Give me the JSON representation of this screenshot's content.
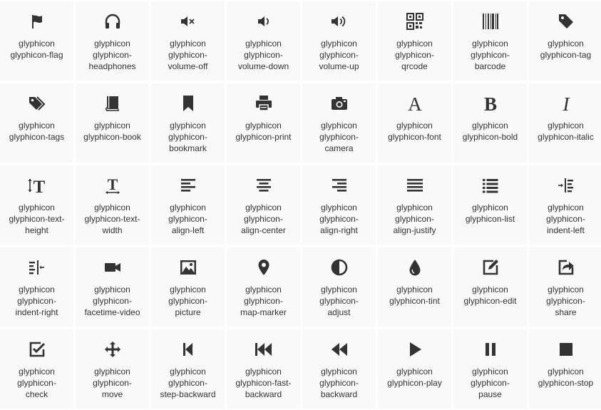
{
  "icons": [
    {
      "icon": "flag-icon",
      "lines": [
        "glyphicon",
        "glyphicon-flag"
      ]
    },
    {
      "icon": "headphones-icon",
      "lines": [
        "glyphicon",
        "glyphicon-",
        "headphones"
      ]
    },
    {
      "icon": "volume-off-icon",
      "lines": [
        "glyphicon",
        "glyphicon-",
        "volume-off"
      ]
    },
    {
      "icon": "volume-down-icon",
      "lines": [
        "glyphicon",
        "glyphicon-",
        "volume-down"
      ]
    },
    {
      "icon": "volume-up-icon",
      "lines": [
        "glyphicon",
        "glyphicon-",
        "volume-up"
      ]
    },
    {
      "icon": "qrcode-icon",
      "lines": [
        "glyphicon",
        "glyphicon-",
        "qrcode"
      ]
    },
    {
      "icon": "barcode-icon",
      "lines": [
        "glyphicon",
        "glyphicon-",
        "barcode"
      ]
    },
    {
      "icon": "tag-icon",
      "lines": [
        "glyphicon",
        "glyphicon-tag"
      ]
    },
    {
      "icon": "tags-icon",
      "lines": [
        "glyphicon",
        "glyphicon-tags"
      ]
    },
    {
      "icon": "book-icon",
      "lines": [
        "glyphicon",
        "glyphicon-book"
      ]
    },
    {
      "icon": "bookmark-icon",
      "lines": [
        "glyphicon",
        "glyphicon-",
        "bookmark"
      ]
    },
    {
      "icon": "print-icon",
      "lines": [
        "glyphicon",
        "glyphicon-print"
      ]
    },
    {
      "icon": "camera-icon",
      "lines": [
        "glyphicon",
        "glyphicon-",
        "camera"
      ]
    },
    {
      "icon": "font-icon",
      "lines": [
        "glyphicon",
        "glyphicon-font"
      ]
    },
    {
      "icon": "bold-icon",
      "lines": [
        "glyphicon",
        "glyphicon-bold"
      ]
    },
    {
      "icon": "italic-icon",
      "lines": [
        "glyphicon",
        "glyphicon-italic"
      ]
    },
    {
      "icon": "text-height-icon",
      "lines": [
        "glyphicon",
        "glyphicon-text-",
        "height"
      ]
    },
    {
      "icon": "text-width-icon",
      "lines": [
        "glyphicon",
        "glyphicon-text-",
        "width"
      ]
    },
    {
      "icon": "align-left-icon",
      "lines": [
        "glyphicon",
        "glyphicon-",
        "align-left"
      ]
    },
    {
      "icon": "align-center-icon",
      "lines": [
        "glyphicon",
        "glyphicon-",
        "align-center"
      ]
    },
    {
      "icon": "align-right-icon",
      "lines": [
        "glyphicon",
        "glyphicon-",
        "align-right"
      ]
    },
    {
      "icon": "align-justify-icon",
      "lines": [
        "glyphicon",
        "glyphicon-",
        "align-justify"
      ]
    },
    {
      "icon": "list-icon",
      "lines": [
        "glyphicon",
        "glyphicon-list"
      ]
    },
    {
      "icon": "indent-left-icon",
      "lines": [
        "glyphicon",
        "glyphicon-",
        "indent-left"
      ]
    },
    {
      "icon": "indent-right-icon",
      "lines": [
        "glyphicon",
        "glyphicon-",
        "indent-right"
      ]
    },
    {
      "icon": "facetime-video-icon",
      "lines": [
        "glyphicon",
        "glyphicon-",
        "facetime-video"
      ]
    },
    {
      "icon": "picture-icon",
      "lines": [
        "glyphicon",
        "glyphicon-",
        "picture"
      ]
    },
    {
      "icon": "map-marker-icon",
      "lines": [
        "glyphicon",
        "glyphicon-",
        "map-marker"
      ]
    },
    {
      "icon": "adjust-icon",
      "lines": [
        "glyphicon",
        "glyphicon-",
        "adjust"
      ]
    },
    {
      "icon": "tint-icon",
      "lines": [
        "glyphicon",
        "glyphicon-tint"
      ]
    },
    {
      "icon": "edit-icon",
      "lines": [
        "glyphicon",
        "glyphicon-edit"
      ]
    },
    {
      "icon": "share-icon",
      "lines": [
        "glyphicon",
        "glyphicon-",
        "share"
      ]
    },
    {
      "icon": "check-icon",
      "lines": [
        "glyphicon",
        "glyphicon-",
        "check"
      ]
    },
    {
      "icon": "move-icon",
      "lines": [
        "glyphicon",
        "glyphicon-",
        "move"
      ]
    },
    {
      "icon": "step-backward-icon",
      "lines": [
        "glyphicon",
        "glyphicon-",
        "step-backward"
      ]
    },
    {
      "icon": "fast-backward-icon",
      "lines": [
        "glyphicon",
        "glyphicon-fast-",
        "backward"
      ]
    },
    {
      "icon": "backward-icon",
      "lines": [
        "glyphicon",
        "glyphicon-",
        "backward"
      ]
    },
    {
      "icon": "play-icon",
      "lines": [
        "glyphicon",
        "glyphicon-play"
      ]
    },
    {
      "icon": "pause-icon",
      "lines": [
        "glyphicon",
        "glyphicon-",
        "pause"
      ]
    },
    {
      "icon": "stop-icon",
      "lines": [
        "glyphicon",
        "glyphicon-stop"
      ]
    }
  ],
  "colors": {
    "icon": "#333333",
    "text": "#333333",
    "cell_bg": "#f9f9f9",
    "page_bg": "#ffffff"
  }
}
